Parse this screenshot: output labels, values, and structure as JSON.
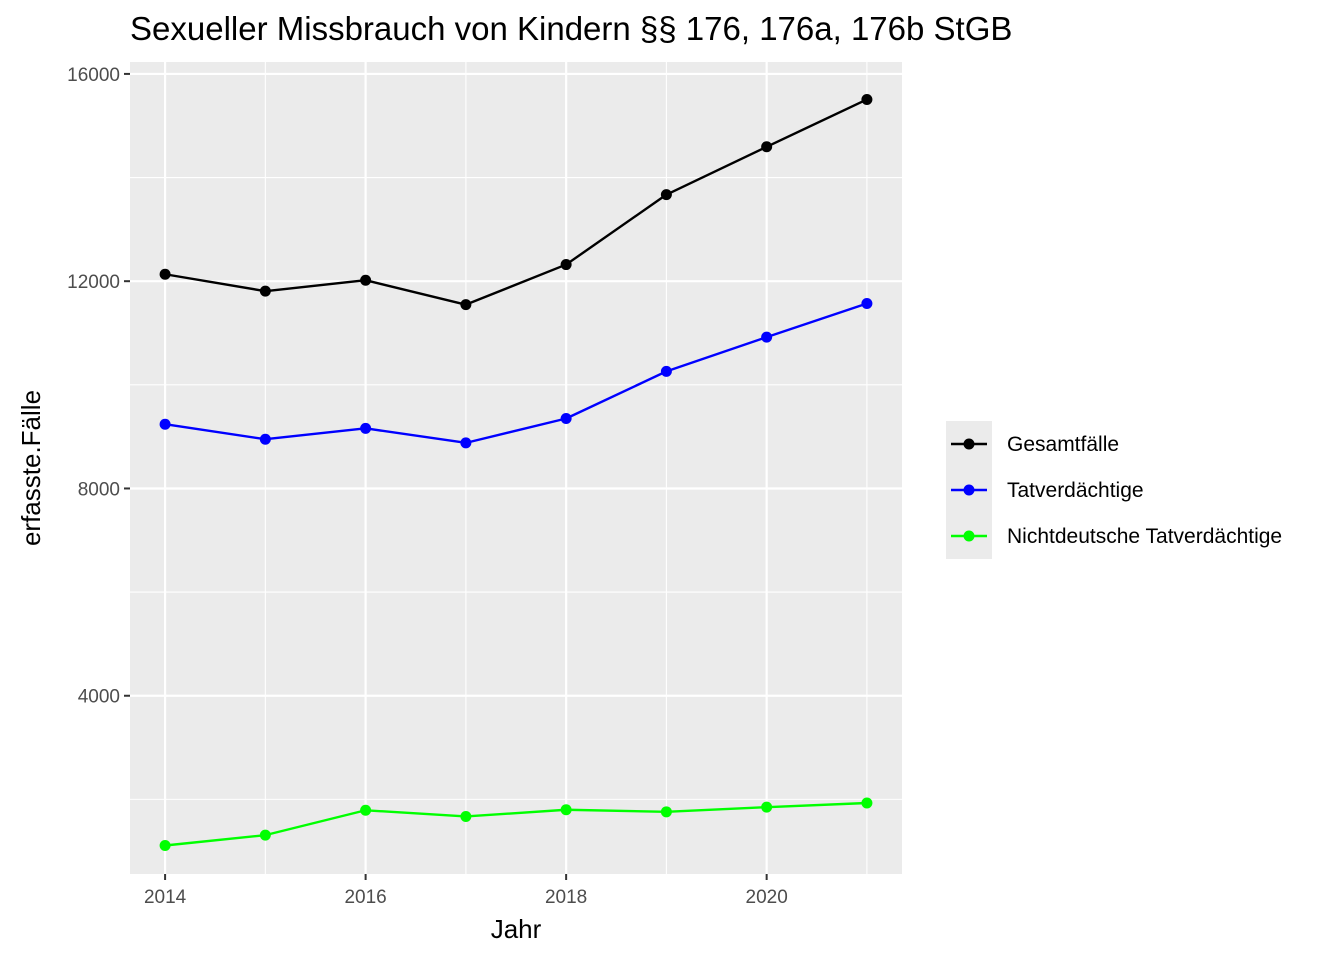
{
  "chart_data": {
    "type": "line",
    "title": "Sexueller Missbrauch von Kindern §§ 176, 176a, 176b StGB",
    "xlabel": "Jahr",
    "ylabel": "erfasste.Fälle",
    "x": [
      2014,
      2015,
      2016,
      2017,
      2018,
      2019,
      2020,
      2021
    ],
    "xlim": [
      2013.65,
      2021.35
    ],
    "ylim": [
      560,
      16230
    ],
    "x_ticks": [
      2014,
      2016,
      2018,
      2020
    ],
    "y_ticks": [
      4000,
      8000,
      12000,
      16000
    ],
    "x_tick_labels": [
      "2014",
      "2016",
      "2018",
      "2020"
    ],
    "y_tick_labels": [
      "4000",
      "8000",
      "12000",
      "16000"
    ],
    "grid": true,
    "legend_position": "right",
    "series": [
      {
        "name": "Gesamtfälle",
        "color": "#000000",
        "values": [
          12134,
          11808,
          12019,
          11547,
          12321,
          13670,
          14594,
          15507
        ]
      },
      {
        "name": "Tatverdächtige",
        "color": "#0000ff",
        "values": [
          9240,
          8950,
          9160,
          8880,
          9350,
          10260,
          10920,
          11570
        ]
      },
      {
        "name": "Nichtdeutsche Tatverdächtige",
        "color": "#00ff00",
        "values": [
          1110,
          1310,
          1790,
          1670,
          1800,
          1760,
          1850,
          1930
        ]
      }
    ]
  }
}
